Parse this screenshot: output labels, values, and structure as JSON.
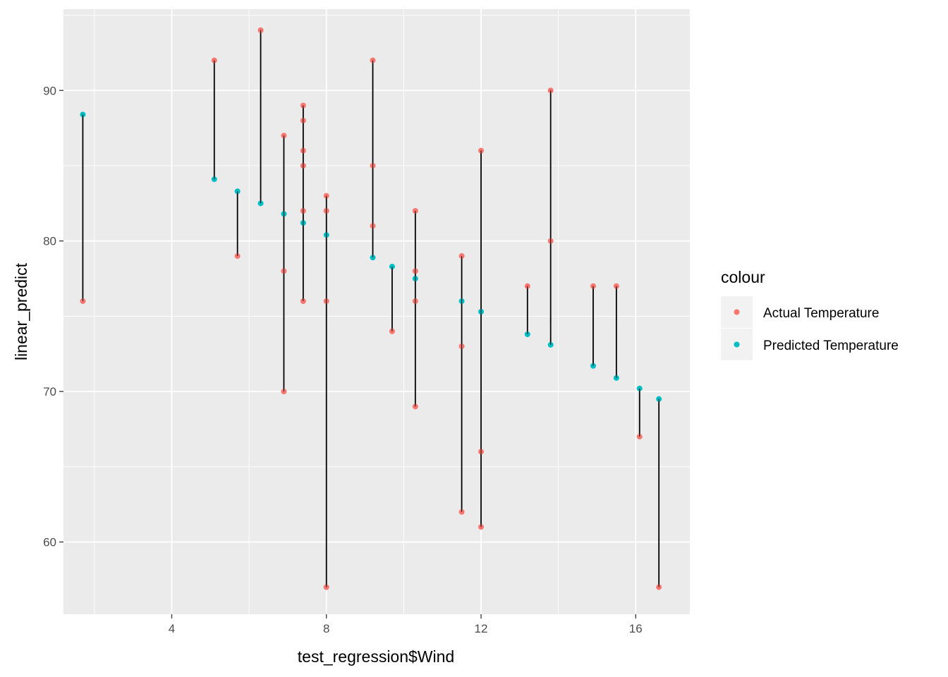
{
  "chart_data": {
    "type": "scatter",
    "xlabel": "test_regression$Wind",
    "ylabel": "linear_predict",
    "xlim": [
      1.2,
      17.4
    ],
    "ylim": [
      55.2,
      95.4
    ],
    "x_ticks": [
      4,
      8,
      12,
      16
    ],
    "y_ticks": [
      60,
      70,
      80,
      90
    ],
    "grid": true,
    "legend": {
      "title": "colour",
      "position": "right",
      "entries": [
        {
          "label": "Actual Temperature",
          "color": "#F8766D"
        },
        {
          "label": "Predicted Temperature",
          "color": "#00BFC4"
        }
      ]
    },
    "series": [
      {
        "name": "Actual Temperature",
        "color": "#F8766D",
        "points": [
          {
            "x": 1.7,
            "y": 76
          },
          {
            "x": 5.1,
            "y": 92
          },
          {
            "x": 5.7,
            "y": 79
          },
          {
            "x": 6.3,
            "y": 94
          },
          {
            "x": 6.9,
            "y": 87
          },
          {
            "x": 6.9,
            "y": 78
          },
          {
            "x": 6.9,
            "y": 70
          },
          {
            "x": 7.4,
            "y": 89
          },
          {
            "x": 7.4,
            "y": 88
          },
          {
            "x": 7.4,
            "y": 86
          },
          {
            "x": 7.4,
            "y": 85
          },
          {
            "x": 7.4,
            "y": 82
          },
          {
            "x": 7.4,
            "y": 76
          },
          {
            "x": 8.0,
            "y": 83
          },
          {
            "x": 8.0,
            "y": 82
          },
          {
            "x": 8.0,
            "y": 76
          },
          {
            "x": 8.0,
            "y": 57
          },
          {
            "x": 9.2,
            "y": 92
          },
          {
            "x": 9.2,
            "y": 85
          },
          {
            "x": 9.2,
            "y": 81
          },
          {
            "x": 9.7,
            "y": 74
          },
          {
            "x": 10.3,
            "y": 82
          },
          {
            "x": 10.3,
            "y": 78
          },
          {
            "x": 10.3,
            "y": 76
          },
          {
            "x": 10.3,
            "y": 69
          },
          {
            "x": 11.5,
            "y": 79
          },
          {
            "x": 11.5,
            "y": 73
          },
          {
            "x": 11.5,
            "y": 62
          },
          {
            "x": 12.0,
            "y": 86
          },
          {
            "x": 12.0,
            "y": 66
          },
          {
            "x": 12.0,
            "y": 61
          },
          {
            "x": 13.2,
            "y": 77
          },
          {
            "x": 13.8,
            "y": 90
          },
          {
            "x": 13.8,
            "y": 80
          },
          {
            "x": 14.9,
            "y": 77
          },
          {
            "x": 15.5,
            "y": 77
          },
          {
            "x": 16.1,
            "y": 67
          },
          {
            "x": 16.6,
            "y": 57
          }
        ]
      },
      {
        "name": "Predicted Temperature",
        "color": "#00BFC4",
        "points": [
          {
            "x": 1.7,
            "y": 88.4
          },
          {
            "x": 5.1,
            "y": 84.1
          },
          {
            "x": 5.7,
            "y": 83.3
          },
          {
            "x": 6.3,
            "y": 82.5
          },
          {
            "x": 6.9,
            "y": 81.8
          },
          {
            "x": 7.4,
            "y": 81.2
          },
          {
            "x": 8.0,
            "y": 80.4
          },
          {
            "x": 9.2,
            "y": 78.9
          },
          {
            "x": 9.7,
            "y": 78.3
          },
          {
            "x": 10.3,
            "y": 77.5
          },
          {
            "x": 11.5,
            "y": 76.0
          },
          {
            "x": 12.0,
            "y": 75.3
          },
          {
            "x": 13.2,
            "y": 73.8
          },
          {
            "x": 13.8,
            "y": 73.1
          },
          {
            "x": 14.9,
            "y": 71.7
          },
          {
            "x": 15.5,
            "y": 70.9
          },
          {
            "x": 16.1,
            "y": 70.2
          },
          {
            "x": 16.6,
            "y": 69.5
          }
        ]
      }
    ],
    "segments": [
      {
        "x": 1.7,
        "y_from": 76,
        "y_to": 88.4
      },
      {
        "x": 5.1,
        "y_from": 84.1,
        "y_to": 92
      },
      {
        "x": 5.7,
        "y_from": 79,
        "y_to": 83.3
      },
      {
        "x": 6.3,
        "y_from": 82.5,
        "y_to": 94
      },
      {
        "x": 6.9,
        "y_from": 70,
        "y_to": 87
      },
      {
        "x": 7.4,
        "y_from": 76,
        "y_to": 89
      },
      {
        "x": 8.0,
        "y_from": 57,
        "y_to": 83
      },
      {
        "x": 9.2,
        "y_from": 78.9,
        "y_to": 92
      },
      {
        "x": 9.7,
        "y_from": 74,
        "y_to": 78.3
      },
      {
        "x": 10.3,
        "y_from": 69,
        "y_to": 82
      },
      {
        "x": 11.5,
        "y_from": 62,
        "y_to": 79
      },
      {
        "x": 12.0,
        "y_from": 61,
        "y_to": 86
      },
      {
        "x": 13.2,
        "y_from": 73.8,
        "y_to": 77
      },
      {
        "x": 13.8,
        "y_from": 73.1,
        "y_to": 90
      },
      {
        "x": 14.9,
        "y_from": 71.7,
        "y_to": 77
      },
      {
        "x": 15.5,
        "y_from": 70.9,
        "y_to": 77
      },
      {
        "x": 16.1,
        "y_from": 67,
        "y_to": 70.2
      },
      {
        "x": 16.6,
        "y_from": 57,
        "y_to": 69.5
      }
    ]
  }
}
